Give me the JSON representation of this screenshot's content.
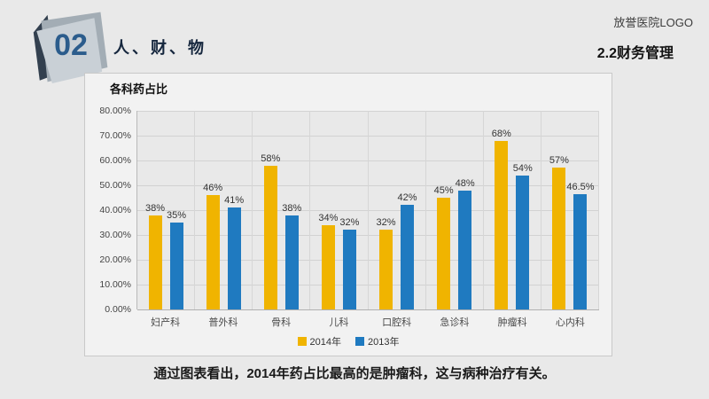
{
  "slide": {
    "badge_number": "02",
    "section_title": "人、财、物",
    "logo_text": "放誉医院LOGO",
    "subtitle": "2.2财务管理",
    "caption": "通过图表看出，2014年药占比最高的是肿瘤科，这与病种治疗有关。"
  },
  "chart_data": {
    "type": "bar",
    "title": "各科药占比",
    "categories": [
      "妇产科",
      "普外科",
      "骨科",
      "儿科",
      "口腔科",
      "急诊科",
      "肿瘤科",
      "心内科"
    ],
    "series": [
      {
        "name": "2014年",
        "color": "#F0B400",
        "values": [
          38,
          46,
          58,
          34,
          32,
          45,
          68,
          57
        ]
      },
      {
        "name": "2013年",
        "color": "#1F7AC0",
        "values": [
          35,
          41,
          38,
          32,
          42,
          48,
          54,
          46.5
        ]
      }
    ],
    "xlabel": "",
    "ylabel": "",
    "ylim": [
      0,
      80
    ],
    "y_ticks": [
      "80.00%",
      "70.00%",
      "60.00%",
      "50.00%",
      "40.00%",
      "30.00%",
      "20.00%",
      "10.00%",
      "0.00%"
    ],
    "grid": true,
    "legend_position": "bottom",
    "data_label_suffix": "%"
  }
}
